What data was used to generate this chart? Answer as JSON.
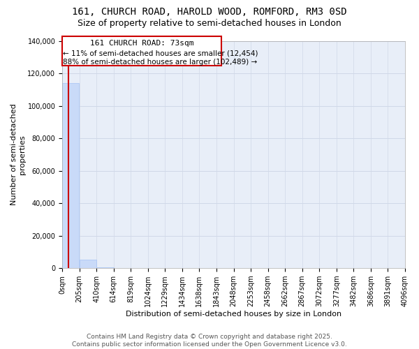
{
  "title": "161, CHURCH ROAD, HAROLD WOOD, ROMFORD, RM3 0SD",
  "subtitle": "Size of property relative to semi-detached houses in London",
  "xlabel": "Distribution of semi-detached houses by size in London",
  "ylabel": "Number of semi-detached\nproperties",
  "annotation_line1": "161 CHURCH ROAD: 73sqm",
  "annotation_line2": "← 11% of semi-detached houses are smaller (12,454)",
  "annotation_line3": "88% of semi-detached houses are larger (102,489) →",
  "footer_line1": "Contains HM Land Registry data © Crown copyright and database right 2025.",
  "footer_line2": "Contains public sector information licensed under the Open Government Licence v3.0.",
  "property_sqm": 73,
  "bar_edges": [
    0,
    205,
    410,
    614,
    819,
    1024,
    1229,
    1434,
    1638,
    1843,
    2048,
    2253,
    2458,
    2662,
    2867,
    3072,
    3277,
    3482,
    3686,
    3891,
    4096
  ],
  "bar_labels": [
    "0sqm",
    "205sqm",
    "410sqm",
    "614sqm",
    "819sqm",
    "1024sqm",
    "1229sqm",
    "1434sqm",
    "1638sqm",
    "1843sqm",
    "2048sqm",
    "2253sqm",
    "2458sqm",
    "2662sqm",
    "2867sqm",
    "3072sqm",
    "3277sqm",
    "3482sqm",
    "3686sqm",
    "3891sqm",
    "4096sqm"
  ],
  "bar_heights": [
    114000,
    5000,
    500,
    150,
    50,
    20,
    10,
    5,
    3,
    2,
    1,
    1,
    1,
    0,
    0,
    0,
    0,
    0,
    0,
    0
  ],
  "bar_color": "#c9daf8",
  "bar_edge_color": "#a4c2f4",
  "highlight_color": "#cc0000",
  "annotation_box_color": "#cc0000",
  "grid_color": "#d0d8e8",
  "ylim": [
    0,
    140000
  ],
  "yticks": [
    0,
    20000,
    40000,
    60000,
    80000,
    100000,
    120000,
    140000
  ],
  "background_color": "#ffffff",
  "plot_bg_color": "#e8eef8",
  "title_fontsize": 10,
  "subtitle_fontsize": 9,
  "tick_fontsize": 7,
  "ylabel_fontsize": 8,
  "xlabel_fontsize": 8,
  "annotation_fontsize": 8,
  "footer_fontsize": 6.5
}
